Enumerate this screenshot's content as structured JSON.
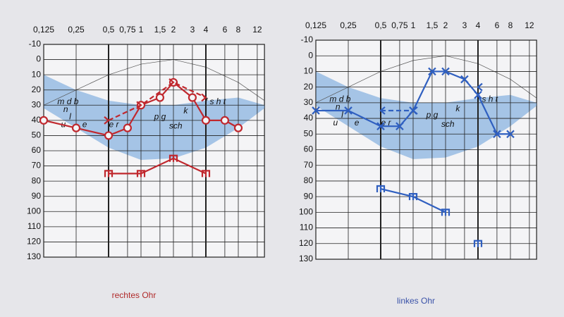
{
  "chart_data": [
    {
      "type": "line",
      "title": "rechtes Ohr",
      "title_color": "#b02a2a",
      "xscale": "log",
      "xlim": [
        0.125,
        14
      ],
      "ylim": [
        -10,
        130
      ],
      "yinverted": true,
      "grid": true,
      "xticks": [
        {
          "value": 0.125,
          "label": "0,125"
        },
        {
          "value": 0.25,
          "label": "0,25"
        },
        {
          "value": 0.5,
          "label": "0,5"
        },
        {
          "value": 0.75,
          "label": "0,75"
        },
        1,
        {
          "value": 1.5,
          "label": "1,5"
        },
        2,
        3,
        4,
        6,
        8,
        12
      ],
      "yticks": [
        -10,
        0,
        10,
        20,
        30,
        40,
        50,
        60,
        70,
        80,
        90,
        100,
        110,
        120,
        130
      ],
      "annotations": [
        "m d b",
        "n",
        "l",
        "u",
        "e",
        "e r",
        "p g",
        "sch",
        "k",
        "f s h t"
      ],
      "series": [
        {
          "color": "#c0282e",
          "marker": "circle",
          "dashed": false,
          "x": [
            0.125,
            0.25,
            0.5,
            0.75,
            1,
            1.5,
            2,
            3,
            4,
            6,
            8
          ],
          "values": [
            40,
            45,
            50,
            45,
            30,
            25,
            15,
            25,
            40,
            40,
            45
          ]
        },
        {
          "color": "#c0282e",
          "marker": "right",
          "dashed": true,
          "x": [
            0.5,
            1,
            2,
            4
          ],
          "values": [
            40,
            30,
            15,
            25
          ]
        },
        {
          "color": "#c0282e",
          "marker": "m",
          "dashed": false,
          "x": [
            0.5,
            1,
            2,
            4
          ],
          "values": [
            75,
            75,
            65,
            75
          ]
        }
      ]
    },
    {
      "type": "line",
      "title": "linkes Ohr",
      "title_color": "#3a52a8",
      "xscale": "log",
      "xlim": [
        0.125,
        14
      ],
      "ylim": [
        -10,
        130
      ],
      "yinverted": true,
      "grid": true,
      "xticks": [
        {
          "value": 0.125,
          "label": "0,125"
        },
        {
          "value": 0.25,
          "label": "0,25"
        },
        {
          "value": 0.5,
          "label": "0,5"
        },
        {
          "value": 0.75,
          "label": "0,75"
        },
        1,
        {
          "value": 1.5,
          "label": "1,5"
        },
        2,
        3,
        4,
        6,
        8,
        12
      ],
      "yticks": [
        -10,
        0,
        10,
        20,
        30,
        40,
        50,
        60,
        70,
        80,
        90,
        100,
        110,
        120,
        130
      ],
      "annotations": [
        "m d b",
        "n",
        "l",
        "u",
        "e",
        "e r",
        "p g",
        "sch",
        "k",
        "f s h t"
      ],
      "series": [
        {
          "color": "#2f5fc0",
          "marker": "cross",
          "dashed": false,
          "x": [
            0.125,
            0.25,
            0.5,
            0.75,
            1,
            1.5,
            2,
            3,
            4,
            6,
            8
          ],
          "values": [
            35,
            35,
            45,
            45,
            35,
            10,
            10,
            15,
            25,
            50,
            50
          ]
        },
        {
          "color": "#2f5fc0",
          "marker": "left",
          "dashed": true,
          "x": [
            0.5,
            1,
            2,
            4
          ],
          "values": [
            35,
            35,
            null,
            20
          ]
        },
        {
          "color": "#2f5fc0",
          "marker": "m",
          "dashed": false,
          "x": [
            0.5,
            1,
            2,
            3,
            4
          ],
          "values": [
            85,
            90,
            100,
            null,
            120
          ]
        }
      ]
    }
  ]
}
